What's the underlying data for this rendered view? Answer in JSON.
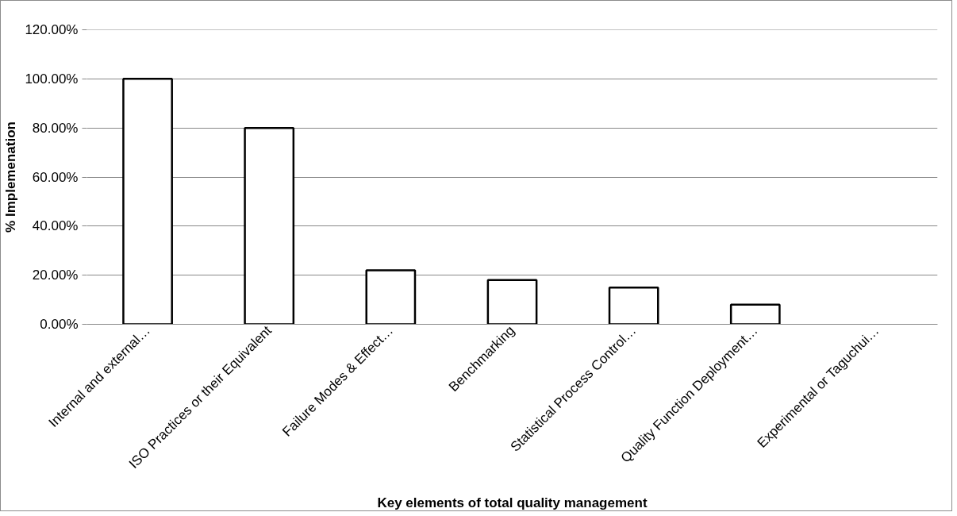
{
  "chart_data": {
    "type": "bar",
    "xlabel": "Key elements of total quality management",
    "ylabel": "% Implemenation",
    "categories": [
      "Internal and external…",
      "ISO Practices or their Equivalent",
      "Failure Modes & Effect…",
      "Benchmarking",
      "Statistical Process Control…",
      "Quality Function Deployment…",
      "Experimental or Taguchui…"
    ],
    "values": [
      100,
      80,
      22,
      18,
      15,
      8,
      0
    ],
    "color": "#ffffff",
    "ylim": [
      0,
      120
    ],
    "yticks": [
      {
        "value": 0,
        "label": "0.00%"
      },
      {
        "value": 20,
        "label": "20.00%"
      },
      {
        "value": 40,
        "label": "40.00%"
      },
      {
        "value": 60,
        "label": "60.00%"
      },
      {
        "value": 80,
        "label": "80.00%"
      },
      {
        "value": 100,
        "label": "100.00%"
      },
      {
        "value": 120,
        "label": "120.00%"
      }
    ],
    "grid": "y"
  }
}
